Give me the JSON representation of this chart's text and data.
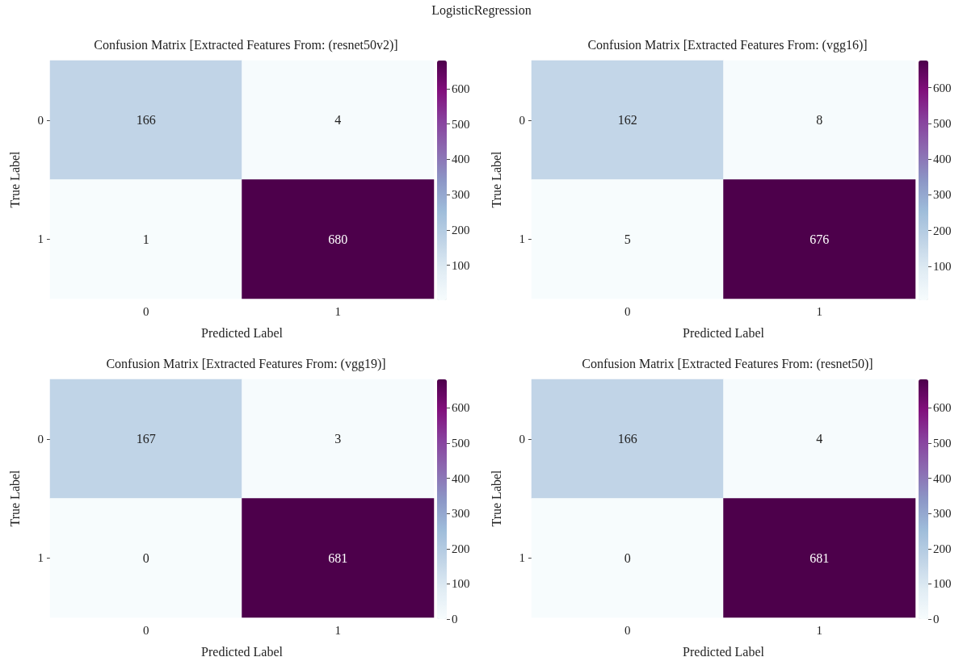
{
  "chart_data": [
    {
      "type": "heatmap",
      "title": "Confusion Matrix [Extracted Features From: (resnet50v2)]",
      "annotations": [
        "LogisticRegression"
      ],
      "xlabel": "Predicted Label",
      "ylabel": "True Label",
      "categories": [
        "0",
        "1"
      ],
      "y_categories": [
        "0",
        "1"
      ],
      "cells": [
        [
          166,
          4
        ],
        [
          1,
          680
        ]
      ],
      "clim": [
        1,
        680
      ],
      "cticks": [
        100,
        200,
        300,
        400,
        500,
        600
      ],
      "data_labels": true
    },
    {
      "type": "heatmap",
      "title": "Confusion Matrix [Extracted Features From: (vgg16)]",
      "xlabel": "Predicted Label",
      "ylabel": "True Label",
      "categories": [
        "0",
        "1"
      ],
      "y_categories": [
        "0",
        "1"
      ],
      "cells": [
        [
          162,
          8
        ],
        [
          5,
          676
        ]
      ],
      "clim": [
        5,
        676
      ],
      "cticks": [
        100,
        200,
        300,
        400,
        500,
        600
      ],
      "data_labels": true
    },
    {
      "type": "heatmap",
      "title": "Confusion Matrix [Extracted Features From: (vgg19)]",
      "xlabel": "Predicted Label",
      "ylabel": "True Label",
      "categories": [
        "0",
        "1"
      ],
      "y_categories": [
        "0",
        "1"
      ],
      "cells": [
        [
          167,
          3
        ],
        [
          0,
          681
        ]
      ],
      "clim": [
        0,
        681
      ],
      "cticks": [
        0,
        100,
        200,
        300,
        400,
        500,
        600
      ],
      "data_labels": true
    },
    {
      "type": "heatmap",
      "title": "Confusion Matrix [Extracted Features From: (resnet50)]",
      "xlabel": "Predicted Label",
      "ylabel": "True Label",
      "categories": [
        "0",
        "1"
      ],
      "y_categories": [
        "0",
        "1"
      ],
      "cells": [
        [
          166,
          4
        ],
        [
          0,
          681
        ]
      ],
      "clim": [
        0,
        681
      ],
      "cticks": [
        0,
        100,
        200,
        300,
        400,
        500,
        600
      ],
      "data_labels": true
    }
  ]
}
